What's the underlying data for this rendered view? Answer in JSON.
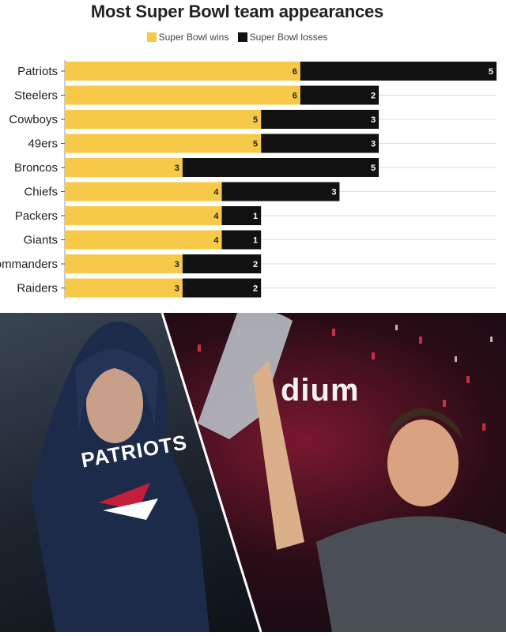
{
  "chart_data": {
    "type": "bar",
    "stacked": true,
    "orientation": "horizontal",
    "title": "Most Super Bowl team appearances",
    "categories": [
      "Patriots",
      "Steelers",
      "Cowboys",
      "49ers",
      "Broncos",
      "Chiefs",
      "Packers",
      "Giants",
      "Commanders",
      "Raiders"
    ],
    "series": [
      {
        "name": "Super Bowl wins",
        "color": "#f7c948",
        "values": [
          6,
          6,
          5,
          5,
          3,
          4,
          4,
          4,
          3,
          3
        ]
      },
      {
        "name": "Super Bowl losses",
        "color": "#111111",
        "values": [
          5,
          2,
          3,
          3,
          5,
          3,
          1,
          1,
          2,
          2
        ]
      }
    ],
    "xlim": [
      0,
      11
    ],
    "legend_position": "top-center",
    "grid": true
  },
  "photos": {
    "left_icon": "coach-in-hoodie-photo",
    "left_hoodie_text": "PATRIOTS",
    "right_icon": "player-with-trophy-photo",
    "right_sign_text": "dium"
  }
}
